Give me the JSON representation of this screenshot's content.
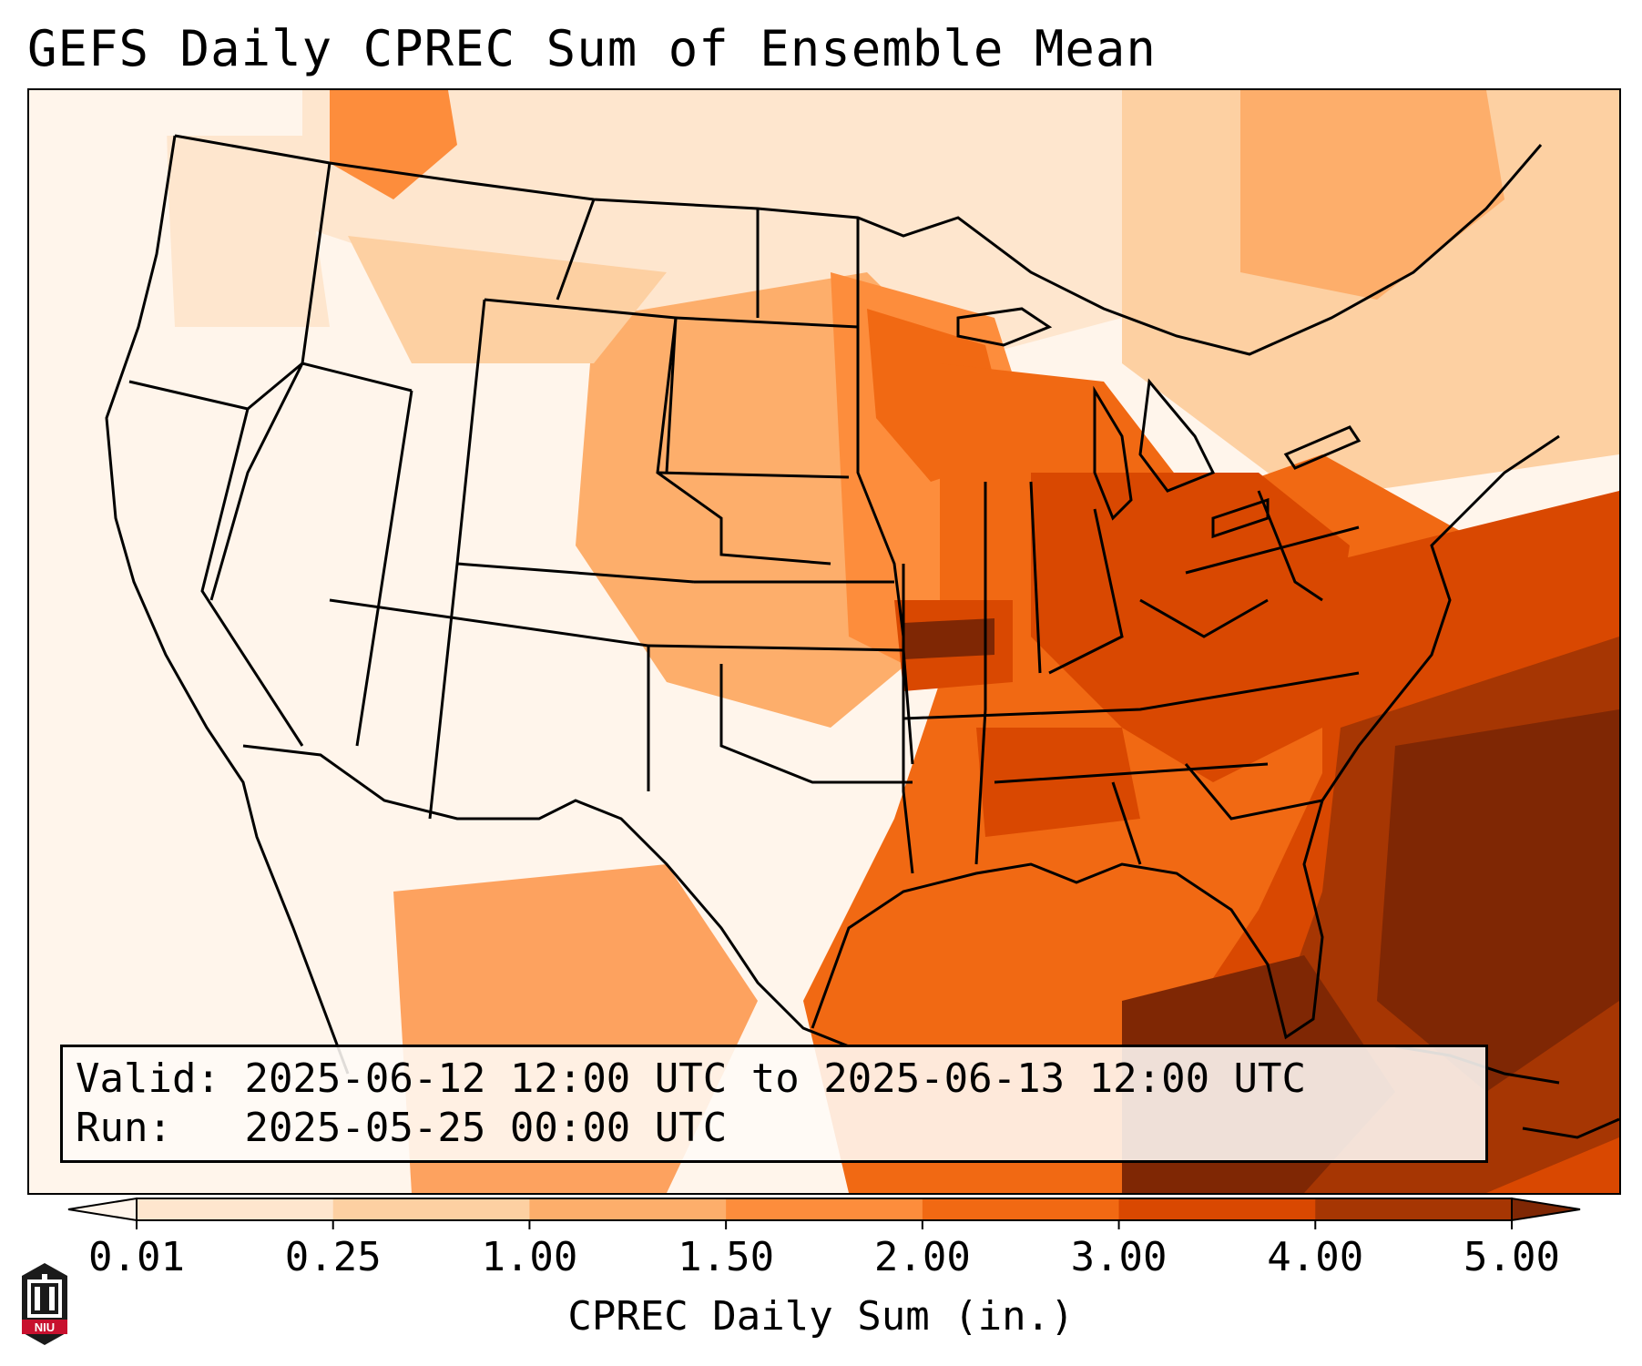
{
  "title": "GEFS Daily CPREC Sum of Ensemble Mean",
  "info": {
    "valid_label": "Valid:",
    "valid_value": "2025-06-12 12:00 UTC to 2025-06-13 12:00 UTC",
    "run_label": "Run:",
    "run_value": "2025-05-25 00:00 UTC"
  },
  "colorbar": {
    "label": "CPREC Daily Sum (in.)",
    "ticks": [
      "0.01",
      "0.25",
      "1.00",
      "1.50",
      "2.00",
      "3.00",
      "4.00",
      "5.00"
    ],
    "colors": [
      "#fee6ce",
      "#fdd0a2",
      "#fdae6b",
      "#fd8d3c",
      "#f16913",
      "#d94801",
      "#a63603"
    ],
    "under_color": "#fff5eb",
    "over_color": "#7f2704"
  },
  "logo": {
    "text": "NIU",
    "color": "#c8102e"
  }
}
